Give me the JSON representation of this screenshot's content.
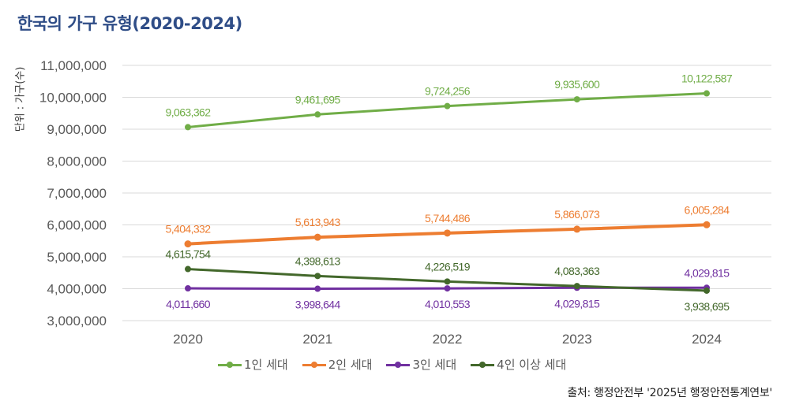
{
  "title": "한국의 가구 유형(2020-2024)",
  "unit_label": "단위 : 가구(수)",
  "source": "출처: 행정안전부 '2025년 행정안전통계연보'",
  "chart_data": {
    "type": "line",
    "title": "한국의 가구 유형(2020-2024)",
    "xlabel": "",
    "ylabel": "단위 : 가구(수)",
    "x": [
      "2020",
      "2021",
      "2022",
      "2023",
      "2024"
    ],
    "ylim": [
      3000000,
      11000000
    ],
    "yticks": [
      3000000,
      4000000,
      5000000,
      6000000,
      7000000,
      8000000,
      9000000,
      10000000,
      11000000
    ],
    "ytick_labels": [
      "3,000,000",
      "4,000,000",
      "5,000,000",
      "6,000,000",
      "7,000,000",
      "8,000,000",
      "9,000,000",
      "10,000,000",
      "11,000,000"
    ],
    "grid": true,
    "legend_position": "bottom",
    "series": [
      {
        "name": "1인 세대",
        "color": "#70ad47",
        "values": [
          9063362,
          9461695,
          9724256,
          9935600,
          10122587
        ],
        "labels": [
          "9,063,362",
          "9,461,695",
          "9,724,256",
          "9,935,600",
          "10,122,587"
        ],
        "label_positions": [
          "above",
          "above",
          "above",
          "above",
          "above"
        ]
      },
      {
        "name": "2인 세대",
        "color": "#ed7d31",
        "values": [
          5404332,
          5613943,
          5744486,
          5866073,
          6005284
        ],
        "labels": [
          "5,404,332",
          "5,613,943",
          "5,744,486",
          "5,866,073",
          "6,005,284"
        ],
        "label_positions": [
          "above",
          "above",
          "above",
          "above",
          "above"
        ]
      },
      {
        "name": "3인 세대",
        "color": "#7030a0",
        "values": [
          4011660,
          3998644,
          4010553,
          4029815,
          4029815
        ],
        "labels": [
          "4,011,660",
          "3,998,644",
          "4,010,553",
          "4,029,815",
          "4,029,815"
        ],
        "label_positions": [
          "below",
          "below",
          "below",
          "below",
          "above"
        ]
      },
      {
        "name": "4인 이상 세대",
        "color": "#43682b",
        "values": [
          4615754,
          4398613,
          4226519,
          4083363,
          3938695
        ],
        "labels": [
          "4,615,754",
          "4,398,613",
          "4,226,519",
          "4,083,363",
          "3,938,695"
        ],
        "label_positions": [
          "above",
          "above",
          "above",
          "above",
          "below"
        ]
      }
    ]
  }
}
